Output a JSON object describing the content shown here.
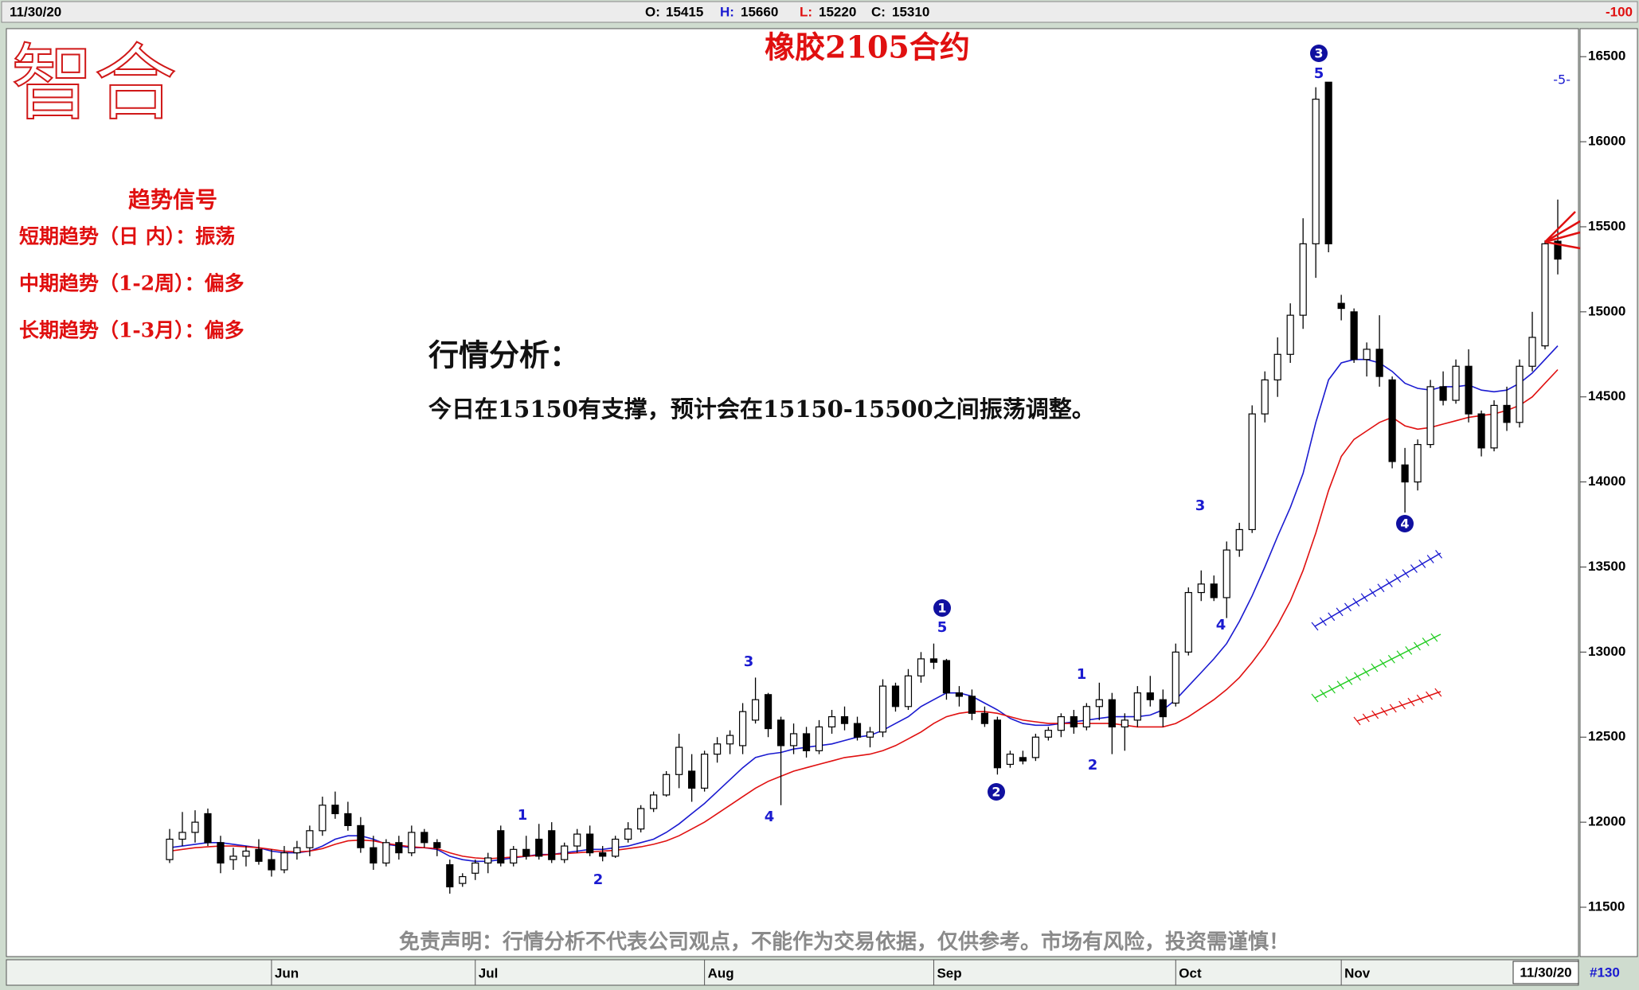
{
  "header": {
    "date": "11/30/20",
    "open_label": "O:",
    "open": 15415,
    "high_label": "H:",
    "high": 15660,
    "low_label": "L:",
    "low": 15220,
    "close_label": "C:",
    "close": 15310,
    "change": "-100"
  },
  "logo": "智合",
  "marker": "-5-",
  "footer": {
    "date": "11/30/20",
    "count": "#130"
  },
  "signals": {
    "title": "趋势信号",
    "items": [
      "短期趋势（日 内）：振荡",
      "中期趋势（1-2周）：偏多",
      "长期趋势（1-3月）：偏多"
    ]
  },
  "analysis": {
    "title": "行情分析：",
    "text": "今日在15150有支撑，预计会在15150-15500之间振荡调整。"
  },
  "disclaimer": "免责声明：行情分析不代表公司观点，不能作为交易依据，仅供参考。市场有风险，投资需谨慎！",
  "chart_data": {
    "type": "candlestick",
    "title": "橡胶2105合约",
    "categories": [
      null,
      null,
      null,
      null,
      null,
      null,
      null,
      null,
      "Jun",
      null,
      null,
      null,
      null,
      null,
      null,
      null,
      null,
      null,
      null,
      null,
      null,
      null,
      null,
      null,
      "Jul",
      null,
      null,
      null,
      null,
      null,
      null,
      null,
      null,
      null,
      null,
      null,
      null,
      null,
      null,
      null,
      null,
      null,
      "Aug",
      null,
      null,
      null,
      null,
      null,
      null,
      null,
      null,
      null,
      null,
      null,
      null,
      null,
      null,
      null,
      null,
      null,
      "Sep",
      null,
      null,
      null,
      null,
      null,
      null,
      null,
      null,
      null,
      null,
      null,
      null,
      null,
      null,
      null,
      null,
      null,
      null,
      "Oct",
      null,
      null,
      null,
      null,
      null,
      null,
      null,
      null,
      null,
      null,
      null,
      null,
      "Nov",
      null,
      null,
      null,
      null,
      null,
      null,
      null,
      null,
      null,
      null,
      null,
      null,
      null,
      null,
      null,
      null,
      null
    ],
    "values": [
      [
        11780,
        11960,
        11760,
        11900
      ],
      [
        11900,
        12060,
        11860,
        11940
      ],
      [
        11940,
        12070,
        11880,
        12000
      ],
      [
        12050,
        12080,
        11860,
        11880
      ],
      [
        11880,
        11920,
        11700,
        11760
      ],
      [
        11780,
        11850,
        11720,
        11800
      ],
      [
        11800,
        11860,
        11740,
        11830
      ],
      [
        11840,
        11900,
        11750,
        11770
      ],
      [
        11780,
        11840,
        11680,
        11720
      ],
      [
        11720,
        11860,
        11700,
        11820
      ],
      [
        11820,
        11890,
        11780,
        11850
      ],
      [
        11850,
        11980,
        11800,
        11950
      ],
      [
        11950,
        12150,
        11920,
        12100
      ],
      [
        12100,
        12180,
        12020,
        12050
      ],
      [
        12050,
        12120,
        11950,
        11980
      ],
      [
        11980,
        12030,
        11820,
        11850
      ],
      [
        11850,
        11920,
        11720,
        11760
      ],
      [
        11760,
        11900,
        11740,
        11880
      ],
      [
        11880,
        11920,
        11780,
        11820
      ],
      [
        11820,
        11980,
        11800,
        11940
      ],
      [
        11940,
        11960,
        11850,
        11880
      ],
      [
        11880,
        11900,
        11800,
        11850
      ],
      [
        11750,
        11780,
        11580,
        11620
      ],
      [
        11640,
        11700,
        11620,
        11680
      ],
      [
        11700,
        11780,
        11660,
        11760
      ],
      [
        11760,
        11820,
        11700,
        11790
      ],
      [
        11950,
        11980,
        11740,
        11760
      ],
      [
        11760,
        11860,
        11740,
        11840
      ],
      [
        11840,
        11920,
        11780,
        11800
      ],
      [
        11900,
        11990,
        11780,
        11800
      ],
      [
        11950,
        12000,
        11760,
        11780
      ],
      [
        11780,
        11880,
        11760,
        11860
      ],
      [
        11860,
        11960,
        11820,
        11930
      ],
      [
        11930,
        11980,
        11800,
        11820
      ],
      [
        11820,
        11860,
        11770,
        11800
      ],
      [
        11800,
        11920,
        11790,
        11900
      ],
      [
        11900,
        12000,
        11880,
        11960
      ],
      [
        11960,
        12100,
        11940,
        12080
      ],
      [
        12080,
        12180,
        12060,
        12160
      ],
      [
        12160,
        12300,
        12150,
        12280
      ],
      [
        12280,
        12520,
        12200,
        12440
      ],
      [
        12300,
        12400,
        12120,
        12200
      ],
      [
        12200,
        12420,
        12180,
        12400
      ],
      [
        12400,
        12500,
        12350,
        12460
      ],
      [
        12460,
        12540,
        12400,
        12510
      ],
      [
        12450,
        12700,
        12400,
        12650
      ],
      [
        12600,
        12850,
        12580,
        12720
      ],
      [
        12750,
        12760,
        12500,
        12550
      ],
      [
        12600,
        12620,
        12100,
        12450
      ],
      [
        12450,
        12580,
        12400,
        12520
      ],
      [
        12520,
        12560,
        12380,
        12420
      ],
      [
        12420,
        12600,
        12400,
        12560
      ],
      [
        12560,
        12660,
        12520,
        12620
      ],
      [
        12620,
        12680,
        12540,
        12580
      ],
      [
        12580,
        12620,
        12480,
        12500
      ],
      [
        12500,
        12560,
        12440,
        12530
      ],
      [
        12530,
        12840,
        12500,
        12800
      ],
      [
        12800,
        12820,
        12650,
        12680
      ],
      [
        12680,
        12900,
        12660,
        12860
      ],
      [
        12860,
        13000,
        12820,
        12960
      ],
      [
        12960,
        13050,
        12900,
        12940
      ],
      [
        12950,
        12960,
        12720,
        12760
      ],
      [
        12760,
        12800,
        12680,
        12740
      ],
      [
        12740,
        12780,
        12600,
        12640
      ],
      [
        12640,
        12680,
        12560,
        12580
      ],
      [
        12600,
        12620,
        12280,
        12320
      ],
      [
        12340,
        12420,
        12320,
        12400
      ],
      [
        12380,
        12420,
        12340,
        12360
      ],
      [
        12380,
        12520,
        12360,
        12500
      ],
      [
        12500,
        12560,
        12480,
        12540
      ],
      [
        12540,
        12640,
        12500,
        12620
      ],
      [
        12620,
        12660,
        12520,
        12560
      ],
      [
        12560,
        12700,
        12540,
        12680
      ],
      [
        12680,
        12820,
        12600,
        12720
      ],
      [
        12720,
        12760,
        12400,
        12560
      ],
      [
        12560,
        12640,
        12420,
        12600
      ],
      [
        12600,
        12800,
        12560,
        12760
      ],
      [
        12760,
        12860,
        12680,
        12720
      ],
      [
        12720,
        12780,
        12560,
        12620
      ],
      [
        12700,
        13050,
        12680,
        13000
      ],
      [
        13000,
        13380,
        12980,
        13350
      ],
      [
        13350,
        13480,
        13300,
        13400
      ],
      [
        13400,
        13450,
        13300,
        13320
      ],
      [
        13320,
        13650,
        13200,
        13600
      ],
      [
        13600,
        13760,
        13560,
        13720
      ],
      [
        13720,
        14450,
        13700,
        14400
      ],
      [
        14400,
        14650,
        14350,
        14600
      ],
      [
        14600,
        14850,
        14500,
        14750
      ],
      [
        14750,
        15050,
        14700,
        14980
      ],
      [
        14980,
        15550,
        14900,
        15400
      ],
      [
        15400,
        16320,
        15200,
        16250
      ],
      [
        16350,
        16350,
        15350,
        15400
      ],
      [
        15050,
        15100,
        14950,
        15020
      ],
      [
        15000,
        15020,
        14700,
        14720
      ],
      [
        14720,
        14820,
        14620,
        14780
      ],
      [
        14780,
        14980,
        14560,
        14620
      ],
      [
        14600,
        14620,
        14080,
        14120
      ],
      [
        14100,
        14200,
        13820,
        14000
      ],
      [
        14000,
        14250,
        13950,
        14220
      ],
      [
        14220,
        14600,
        14200,
        14560
      ],
      [
        14560,
        14650,
        14450,
        14480
      ],
      [
        14480,
        14720,
        14460,
        14680
      ],
      [
        14680,
        14780,
        14350,
        14400
      ],
      [
        14400,
        14420,
        14150,
        14200
      ],
      [
        14200,
        14480,
        14180,
        14450
      ],
      [
        14450,
        14560,
        14300,
        14350
      ],
      [
        14350,
        14720,
        14320,
        14680
      ],
      [
        14680,
        15000,
        14650,
        14850
      ],
      [
        14800,
        15420,
        14780,
        15400
      ],
      [
        15415,
        15660,
        15220,
        15310
      ]
    ],
    "up_color": "#ffffff",
    "down_color": "#000000",
    "lines": [
      {
        "color": "#1a1ad0",
        "values": [
          11850,
          11860,
          11870,
          11880,
          11880,
          11870,
          11860,
          11850,
          11830,
          11820,
          11820,
          11830,
          11860,
          11900,
          11920,
          11920,
          11900,
          11870,
          11860,
          11850,
          11850,
          11840,
          11800,
          11780,
          11770,
          11770,
          11780,
          11790,
          11800,
          11810,
          11810,
          11820,
          11830,
          11840,
          11840,
          11850,
          11860,
          11880,
          11900,
          11940,
          11990,
          12050,
          12110,
          12180,
          12250,
          12320,
          12380,
          12400,
          12410,
          12430,
          12440,
          12450,
          12460,
          12480,
          12500,
          12510,
          12540,
          12580,
          12620,
          12680,
          12720,
          12760,
          12760,
          12740,
          12700,
          12660,
          12610,
          12580,
          12570,
          12570,
          12580,
          12590,
          12600,
          12610,
          12620,
          12620,
          12620,
          12630,
          12660,
          12720,
          12800,
          12880,
          12960,
          13050,
          13180,
          13330,
          13500,
          13680,
          13850,
          14050,
          14350,
          14600,
          14700,
          14720,
          14720,
          14700,
          14650,
          14580,
          14550,
          14540,
          14560,
          14560,
          14570,
          14540,
          14530,
          14540,
          14580,
          14640,
          14720,
          14800
        ]
      },
      {
        "color": "#e01010",
        "values": [
          11830,
          11840,
          11850,
          11855,
          11860,
          11860,
          11855,
          11850,
          11840,
          11830,
          11825,
          11830,
          11845,
          11870,
          11890,
          11895,
          11890,
          11875,
          11865,
          11855,
          11850,
          11845,
          11820,
          11800,
          11790,
          11785,
          11790,
          11795,
          11800,
          11805,
          11810,
          11815,
          11820,
          11825,
          11830,
          11835,
          11845,
          11855,
          11870,
          11890,
          11920,
          11960,
          12000,
          12050,
          12100,
          12150,
          12200,
          12240,
          12270,
          12300,
          12320,
          12340,
          12360,
          12380,
          12390,
          12400,
          12420,
          12450,
          12490,
          12530,
          12580,
          12620,
          12640,
          12650,
          12650,
          12640,
          12620,
          12600,
          12590,
          12580,
          12580,
          12580,
          12580,
          12580,
          12580,
          12570,
          12560,
          12560,
          12560,
          12580,
          12620,
          12670,
          12720,
          12780,
          12850,
          12940,
          13040,
          13160,
          13300,
          13480,
          13700,
          13950,
          14150,
          14250,
          14300,
          14350,
          14380,
          14330,
          14310,
          14320,
          14340,
          14360,
          14380,
          14390,
          14400,
          14420,
          14450,
          14500,
          14580,
          14660
        ]
      }
    ],
    "wave_labels": [
      {
        "text": "1",
        "circled": false
      },
      {
        "text": "2",
        "circled": false
      },
      {
        "text": "3",
        "circled": false
      },
      {
        "text": "4",
        "circled": false
      },
      {
        "text": "1",
        "circled": true
      },
      {
        "text": "5",
        "circled": false
      },
      {
        "text": "2",
        "circled": true
      },
      {
        "text": "1",
        "circled": false
      },
      {
        "text": "2",
        "circled": false
      },
      {
        "text": "3",
        "circled": false
      },
      {
        "text": "4",
        "circled": false
      },
      {
        "text": "3",
        "circled": true
      },
      {
        "text": "5",
        "circled": false
      },
      {
        "text": "4",
        "circled": true
      }
    ],
    "ylim": [
      11210,
      16660
    ],
    "yticks": [
      11500,
      12000,
      12500,
      13000,
      13500,
      14000,
      14500,
      15000,
      15500,
      16000,
      16500
    ]
  }
}
